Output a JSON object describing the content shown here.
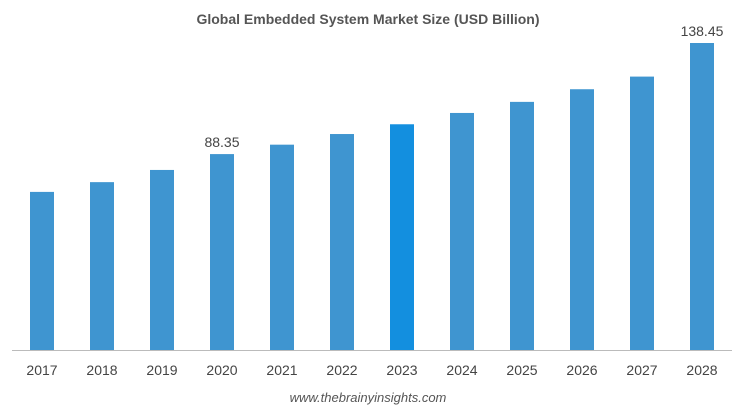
{
  "chart_data": {
    "type": "bar",
    "title": "Global Embedded System Market Size (USD Billion)",
    "categories": [
      "2017",
      "2018",
      "2019",
      "2020",
      "2021",
      "2022",
      "2023",
      "2024",
      "2025",
      "2026",
      "2027",
      "2028"
    ],
    "values": [
      71.3,
      75.7,
      81.2,
      88.35,
      92.6,
      97.4,
      101.8,
      106.9,
      111.9,
      117.6,
      123.3,
      138.45
    ],
    "data_labels": {
      "2020": "88.35",
      "2028": "138.45"
    },
    "xlabel": "",
    "ylabel": "",
    "ylim": [
      0,
      145
    ],
    "grid": false,
    "legend": "none",
    "colors": {
      "bar": "#3f95d0",
      "highlight": "#138fdf",
      "axis": "#bbbbbb"
    },
    "highlight_category": "2023"
  },
  "footer": "www.thebrainyinsights.com"
}
